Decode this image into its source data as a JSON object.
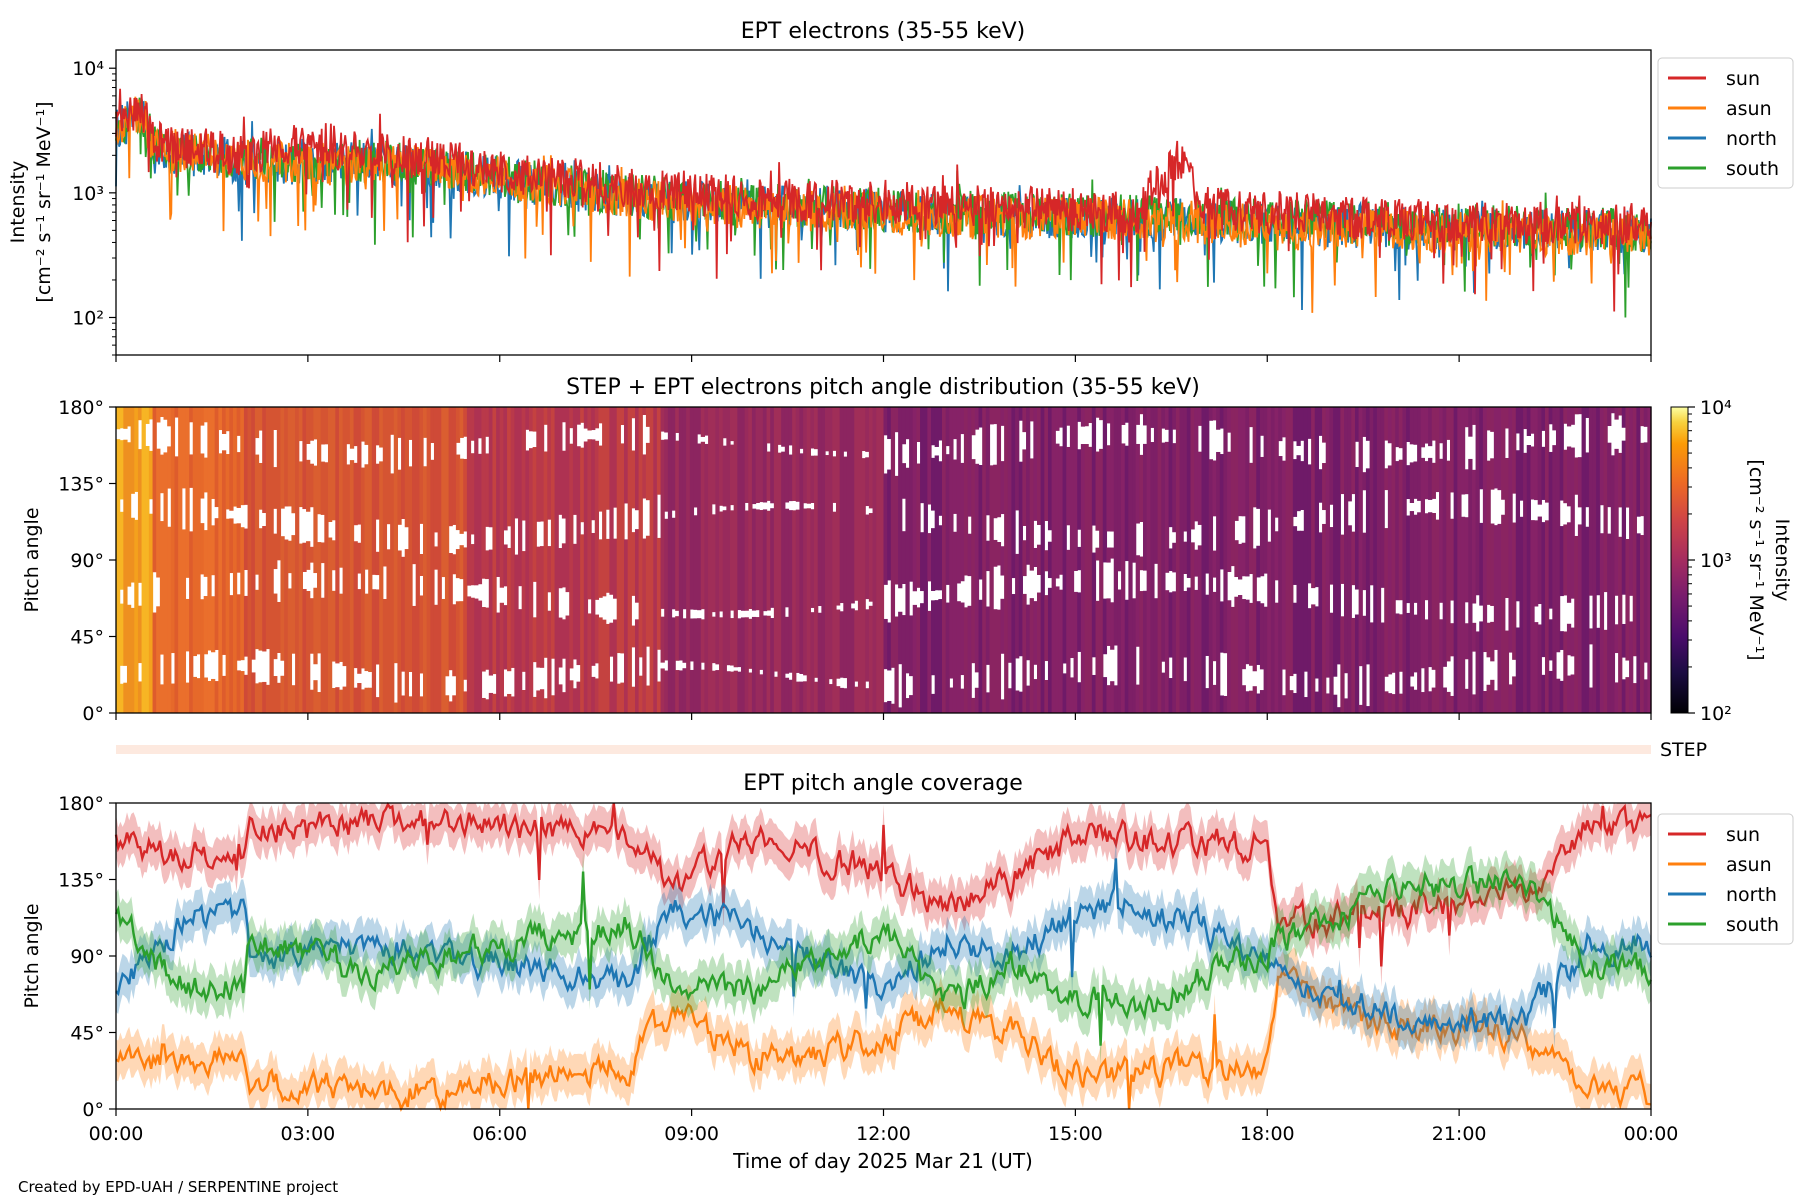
{
  "footer": "Created by EPD-UAH / SERPENTINE project",
  "xlabel": "Time of day 2025 Mar 21 (UT)",
  "xticks": [
    "00:00",
    "03:00",
    "06:00",
    "09:00",
    "12:00",
    "15:00",
    "18:00",
    "21:00",
    "00:00"
  ],
  "step_label": "STEP",
  "colors": {
    "sun": "#d62728",
    "asun": "#ff7f0e",
    "north": "#1f77b4",
    "south": "#2ca02c"
  },
  "chart_data": [
    {
      "type": "line",
      "title": "EPT electrons (35-55 keV)",
      "ylabel_line1": "Intensity",
      "ylabel_line2": "[cm⁻² s⁻¹ sr⁻¹ MeV⁻¹]",
      "yscale": "log",
      "ylim": [
        50,
        14000
      ],
      "yticks": [
        {
          "value": 100,
          "label": "10²"
        },
        {
          "value": 1000,
          "label": "10³"
        },
        {
          "value": 10000,
          "label": "10⁴"
        }
      ],
      "x_hours": [
        0,
        24
      ],
      "legend": [
        "sun",
        "asun",
        "north",
        "south"
      ],
      "series": [
        {
          "name": "sun",
          "trend": [
            [
              0,
              3500
            ],
            [
              0.4,
              4500
            ],
            [
              0.6,
              2500
            ],
            [
              2,
              2000
            ],
            [
              3,
              2600
            ],
            [
              4.5,
              2000
            ],
            [
              6,
              1500
            ],
            [
              8,
              1100
            ],
            [
              10,
              900
            ],
            [
              13,
              800
            ],
            [
              16,
              700
            ],
            [
              16.6,
              1800
            ],
            [
              17,
              750
            ],
            [
              20,
              600
            ],
            [
              24,
              550
            ]
          ]
        },
        {
          "name": "asun",
          "trend": [
            [
              0,
              3500
            ],
            [
              0.4,
              4300
            ],
            [
              0.6,
              2300
            ],
            [
              2,
              1800
            ],
            [
              3,
              1700
            ],
            [
              4.5,
              1700
            ],
            [
              6,
              1300
            ],
            [
              8,
              900
            ],
            [
              10,
              750
            ],
            [
              13,
              650
            ],
            [
              16,
              600
            ],
            [
              20,
              500
            ],
            [
              24,
              450
            ]
          ]
        },
        {
          "name": "north",
          "trend": [
            [
              0,
              3300
            ],
            [
              0.4,
              4200
            ],
            [
              0.6,
              2200
            ],
            [
              2,
              1800
            ],
            [
              3,
              1700
            ],
            [
              4.5,
              1700
            ],
            [
              6,
              1300
            ],
            [
              8,
              900
            ],
            [
              10,
              780
            ],
            [
              13,
              680
            ],
            [
              16,
              620
            ],
            [
              20,
              520
            ],
            [
              24,
              480
            ]
          ]
        },
        {
          "name": "south",
          "trend": [
            [
              0,
              3300
            ],
            [
              0.4,
              4400
            ],
            [
              0.6,
              2300
            ],
            [
              2,
              1900
            ],
            [
              3,
              1800
            ],
            [
              4.5,
              1800
            ],
            [
              6,
              1350
            ],
            [
              8,
              950
            ],
            [
              10,
              800
            ],
            [
              13,
              700
            ],
            [
              16,
              650
            ],
            [
              20,
              560
            ],
            [
              24,
              500
            ]
          ]
        }
      ]
    },
    {
      "type": "heatmap",
      "title": "STEP + EPT electrons pitch angle distribution (35-55 keV)",
      "ylabel": "Pitch angle",
      "ylim": [
        0,
        180
      ],
      "yticks": [
        "0°",
        "45°",
        "90°",
        "135°",
        "180°"
      ],
      "colorbar": {
        "label_line1": "Intensity",
        "label_line2": "[cm⁻² s⁻¹ sr⁻¹ MeV⁻¹]",
        "range": [
          100,
          10000
        ],
        "ticks": [
          "10²",
          "10³",
          "10⁴"
        ],
        "colormap": "inferno"
      }
    },
    {
      "type": "line",
      "title": "EPT pitch angle coverage",
      "ylabel": "Pitch angle",
      "ylim": [
        0,
        180
      ],
      "yticks": [
        "0°",
        "45°",
        "90°",
        "135°",
        "180°"
      ],
      "legend": [
        "sun",
        "asun",
        "north",
        "south"
      ],
      "series": [
        {
          "name": "sun",
          "trend": [
            [
              0,
              155
            ],
            [
              2,
              150
            ],
            [
              2.1,
              165
            ],
            [
              5,
              170
            ],
            [
              8,
              160
            ],
            [
              8.7,
              130
            ],
            [
              10,
              160
            ],
            [
              12,
              140
            ],
            [
              13,
              120
            ],
            [
              14,
              135
            ],
            [
              15,
              160
            ],
            [
              18,
              155
            ],
            [
              18.2,
              110
            ],
            [
              20,
              115
            ],
            [
              22,
              130
            ],
            [
              23,
              165
            ],
            [
              24,
              170
            ]
          ]
        },
        {
          "name": "asun",
          "trend": [
            [
              0,
              30
            ],
            [
              2,
              30
            ],
            [
              2.1,
              15
            ],
            [
              5,
              10
            ],
            [
              8,
              25
            ],
            [
              8.7,
              60
            ],
            [
              10,
              30
            ],
            [
              12,
              40
            ],
            [
              13,
              60
            ],
            [
              14,
              45
            ],
            [
              15,
              20
            ],
            [
              18,
              25
            ],
            [
              18.2,
              75
            ],
            [
              20,
              50
            ],
            [
              22,
              45
            ],
            [
              23,
              15
            ],
            [
              24,
              10
            ]
          ]
        },
        {
          "name": "north",
          "trend": [
            [
              0,
              70
            ],
            [
              1,
              110
            ],
            [
              2,
              115
            ],
            [
              2.1,
              90
            ],
            [
              4,
              100
            ],
            [
              6,
              85
            ],
            [
              8,
              75
            ],
            [
              8.7,
              120
            ],
            [
              10,
              105
            ],
            [
              12,
              70
            ],
            [
              13,
              100
            ],
            [
              14,
              90
            ],
            [
              15,
              115
            ],
            [
              16,
              120
            ],
            [
              18,
              90
            ],
            [
              18.2,
              80
            ],
            [
              20,
              55
            ],
            [
              22,
              50
            ],
            [
              23,
              95
            ],
            [
              24,
              100
            ]
          ]
        },
        {
          "name": "south",
          "trend": [
            [
              0,
              110
            ],
            [
              1,
              75
            ],
            [
              2,
              70
            ],
            [
              2.1,
              100
            ],
            [
              4,
              80
            ],
            [
              6,
              95
            ],
            [
              8,
              110
            ],
            [
              8.7,
              75
            ],
            [
              10,
              70
            ],
            [
              12,
              105
            ],
            [
              13,
              60
            ],
            [
              14,
              85
            ],
            [
              15,
              65
            ],
            [
              16,
              60
            ],
            [
              18,
              95
            ],
            [
              18.2,
              100
            ],
            [
              20,
              130
            ],
            [
              22,
              135
            ],
            [
              23,
              85
            ],
            [
              24,
              80
            ]
          ]
        }
      ]
    }
  ]
}
